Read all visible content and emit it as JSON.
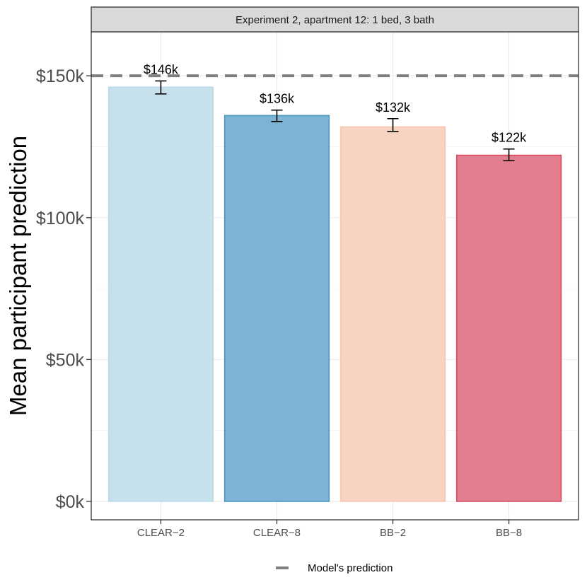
{
  "chart_data": {
    "type": "bar",
    "facet_title": "Experiment 2, apartment 12: 1 bed, 3 bath",
    "ylabel": "Mean participant prediction",
    "xlabel": "",
    "categories": [
      "CLEAR−2",
      "CLEAR−8",
      "BB−2",
      "BB−8"
    ],
    "values": [
      146,
      136,
      132,
      122
    ],
    "value_units": "thousands of dollars",
    "bar_labels": [
      "$146k",
      "$136k",
      "$132k",
      "$122k"
    ],
    "error_bars": [
      {
        "low": 143.6,
        "high": 148.2
      },
      {
        "low": 133.9,
        "high": 137.9
      },
      {
        "low": 130.4,
        "high": 134.9
      },
      {
        "low": 120.1,
        "high": 124.2
      }
    ],
    "bar_fills": [
      "#c6e0ec",
      "#7db4d6",
      "#f7d3c1",
      "#e37e8e"
    ],
    "bar_strokes": [
      "#b9dbea",
      "#4a95c2",
      "#f4c7b0",
      "#d84a62"
    ],
    "reference_line": {
      "value": 150,
      "label": "Model's prediction",
      "color": "#7f7f7f"
    },
    "ylim": [
      -6.5,
      165.5
    ],
    "yticks": [
      0,
      50,
      100,
      150
    ],
    "ytick_labels": [
      "$0k",
      "$50k",
      "$100k",
      "$150k"
    ],
    "grid": true,
    "legend": {
      "position": "bottom",
      "entries": [
        "Model's prediction"
      ]
    }
  }
}
